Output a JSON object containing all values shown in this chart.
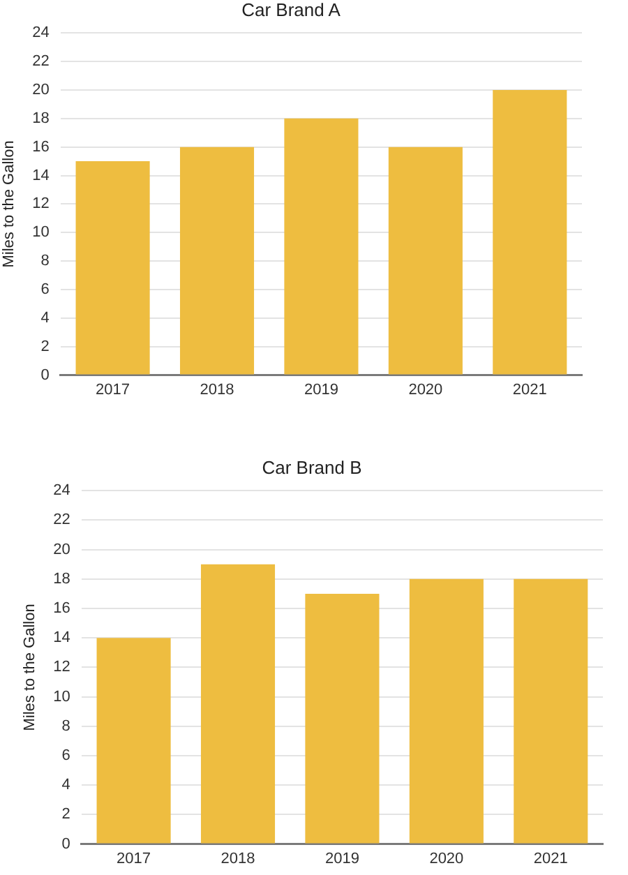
{
  "chart_data": [
    {
      "type": "bar",
      "title": "Car Brand A",
      "ylabel": "Miles to the Gallon",
      "categories": [
        "2017",
        "2018",
        "2019",
        "2020",
        "2021"
      ],
      "values": [
        15,
        16,
        18,
        16,
        20
      ],
      "color": "#eebd40",
      "ylim": [
        0,
        24
      ],
      "yticks": [
        0,
        2,
        4,
        6,
        8,
        10,
        12,
        14,
        16,
        18,
        20,
        22,
        24
      ],
      "grid": "y"
    },
    {
      "type": "bar",
      "title": "Car Brand B",
      "ylabel": "Miles to the Gallon",
      "categories": [
        "2017",
        "2018",
        "2019",
        "2020",
        "2021"
      ],
      "values": [
        14,
        19,
        17,
        18,
        18
      ],
      "color": "#eebd40",
      "ylim": [
        0,
        24
      ],
      "yticks": [
        0,
        2,
        4,
        6,
        8,
        10,
        12,
        14,
        16,
        18,
        20,
        22,
        24
      ],
      "grid": "y"
    }
  ]
}
